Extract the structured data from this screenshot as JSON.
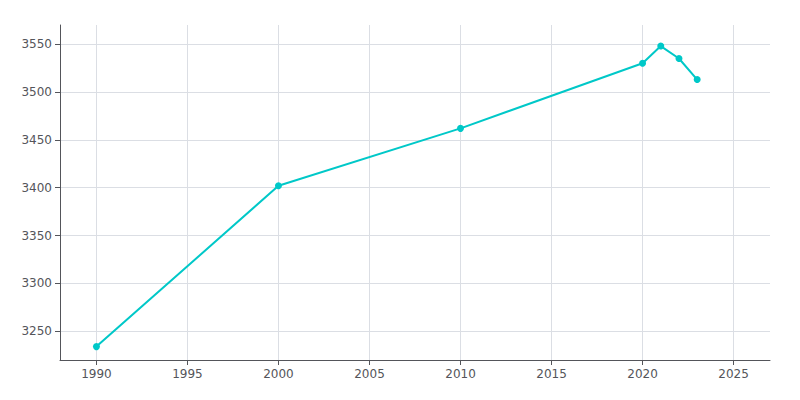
{
  "chart_data": {
    "type": "line",
    "x": [
      1990,
      2000,
      2010,
      2020,
      2021,
      2022,
      2023
    ],
    "values": [
      3234,
      3402,
      3462,
      3530,
      3548,
      3535,
      3513
    ],
    "color": "#00c8c8",
    "marker": "circle",
    "xlim": [
      1988,
      2027
    ],
    "ylim": [
      3220,
      3570
    ],
    "xticks": [
      1990,
      1995,
      2000,
      2005,
      2010,
      2015,
      2020,
      2025
    ],
    "yticks": [
      3250,
      3300,
      3350,
      3400,
      3450,
      3500,
      3550
    ],
    "grid": true
  }
}
